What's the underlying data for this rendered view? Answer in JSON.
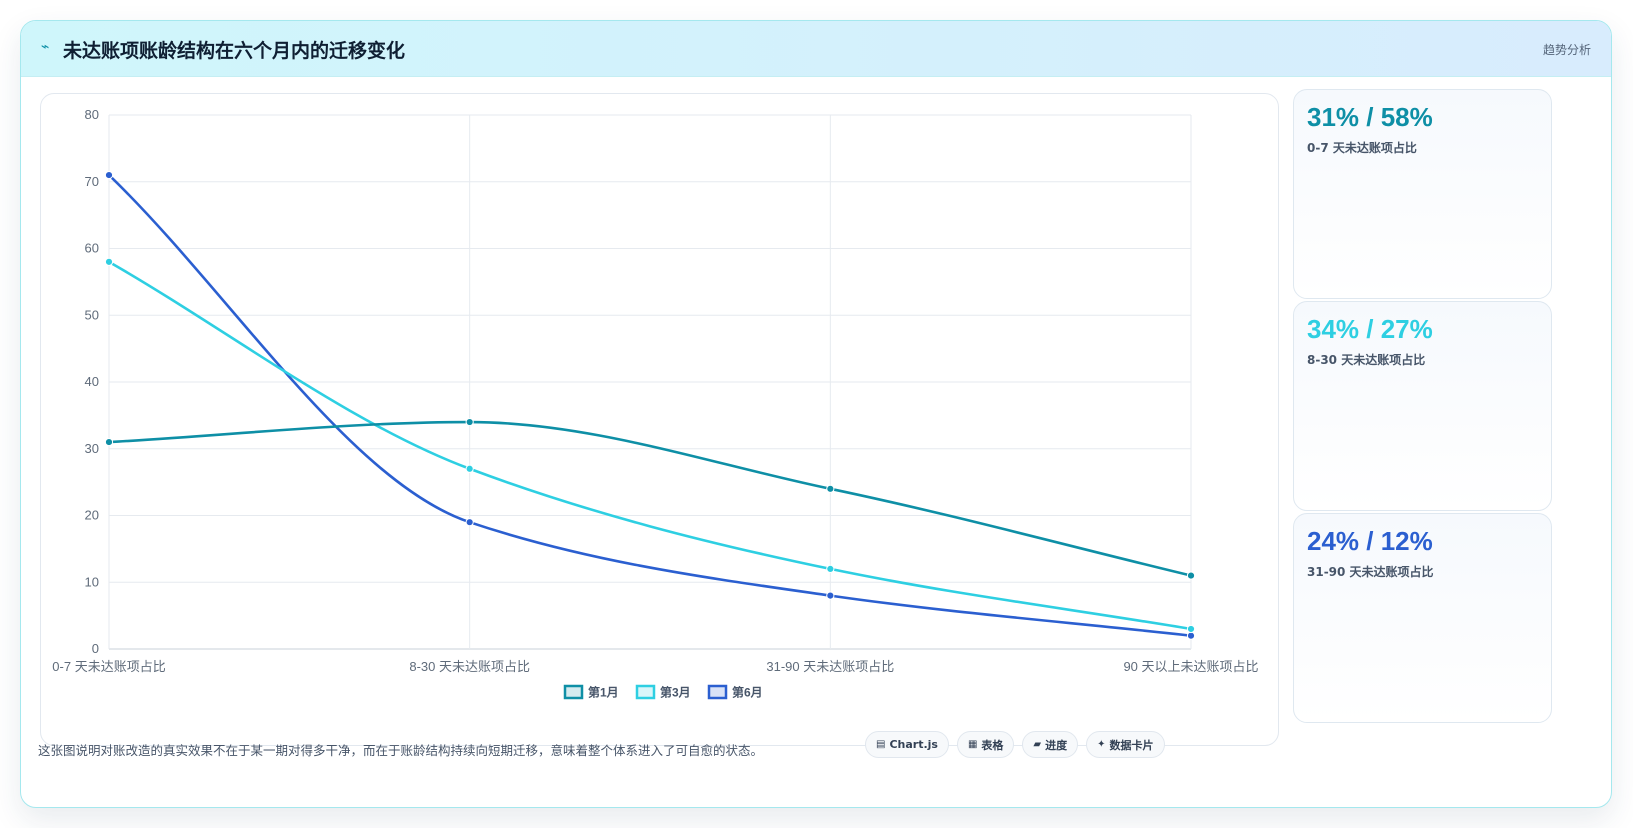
{
  "header": {
    "title": "未达账项账龄结构在六个月内的迁移变化",
    "tag": "趋势分析"
  },
  "chart_data": {
    "type": "line",
    "categories": [
      "0-7 天未达账项占比",
      "8-30 天未达账项占比",
      "31-90 天未达账项占比",
      "90 天以上未达账项占比"
    ],
    "series": [
      {
        "name": "第1月",
        "values": [
          31,
          34,
          24,
          11
        ],
        "color": "#0e8fa6"
      },
      {
        "name": "第3月",
        "values": [
          58,
          27,
          12,
          3
        ],
        "color": "#2ecfe2"
      },
      {
        "name": "第6月",
        "values": [
          71,
          19,
          8,
          2
        ],
        "color": "#2b5fd0"
      }
    ],
    "ylim": [
      0,
      80
    ],
    "yticks": [
      0,
      10,
      20,
      30,
      40,
      50,
      60,
      70,
      80
    ],
    "grid": true,
    "legend": "bottom-center"
  },
  "kpis": [
    {
      "value": "31% / 58%",
      "label": "0-7 天未达账项占比",
      "color": "#0e8fa6"
    },
    {
      "value": "34% / 27%",
      "label": "8-30 天未达账项占比",
      "color": "#2ecfe2"
    },
    {
      "value": "24% / 12%",
      "label": "31-90 天未达账项占比",
      "color": "#2b5fd0"
    }
  ],
  "footer": {
    "note": "这张图说明对账改造的真实效果不在于某一期对得多干净，而在于账龄结构持续向短期迁移，意味着整个体系进入了可自愈的状态。",
    "chips": [
      {
        "icon": "chart-icon",
        "label": "Chart.js"
      },
      {
        "icon": "table-icon",
        "label": "表格"
      },
      {
        "icon": "progress-icon",
        "label": "进度"
      },
      {
        "icon": "card-icon",
        "label": "数据卡片"
      }
    ]
  }
}
